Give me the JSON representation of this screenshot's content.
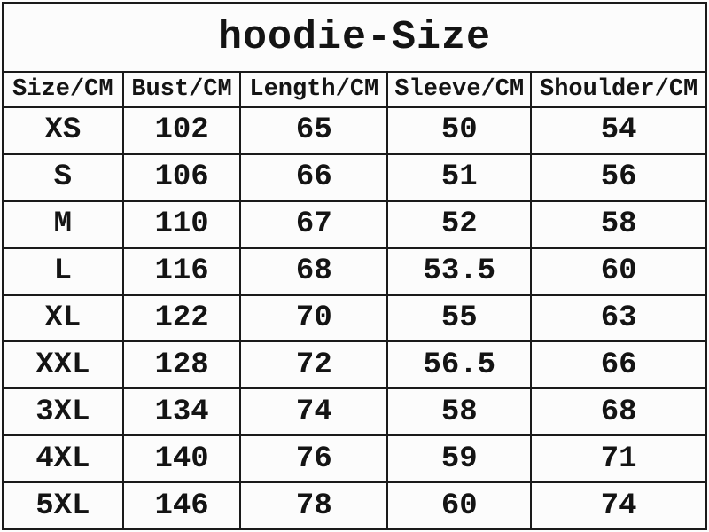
{
  "title": "hoodie-Size",
  "table": {
    "headers": [
      "Size/CM",
      "Bust/CM",
      "Length/CM",
      "Sleeve/CM",
      "Shoulder/CM"
    ],
    "rows": [
      [
        "XS",
        "102",
        "65",
        "50",
        "54"
      ],
      [
        "S",
        "106",
        "66",
        "51",
        "56"
      ],
      [
        "M",
        "110",
        "67",
        "52",
        "58"
      ],
      [
        "L",
        "116",
        "68",
        "53.5",
        "60"
      ],
      [
        "XL",
        "122",
        "70",
        "55",
        "63"
      ],
      [
        "XXL",
        "128",
        "72",
        "56.5",
        "66"
      ],
      [
        "3XL",
        "134",
        "74",
        "58",
        "68"
      ],
      [
        "4XL",
        "140",
        "76",
        "59",
        "71"
      ],
      [
        "5XL",
        "146",
        "78",
        "60",
        "74"
      ]
    ]
  },
  "colors": {
    "background": "#fcfcfc",
    "border": "#1a1a1a",
    "text": "#141414"
  },
  "chart_data": {
    "type": "table",
    "title": "hoodie-Size",
    "columns": [
      "Size/CM",
      "Bust/CM",
      "Length/CM",
      "Sleeve/CM",
      "Shoulder/CM"
    ],
    "rows": [
      {
        "size": "XS",
        "bust_cm": 102,
        "length_cm": 65,
        "sleeve_cm": 50,
        "shoulder_cm": 54
      },
      {
        "size": "S",
        "bust_cm": 106,
        "length_cm": 66,
        "sleeve_cm": 51,
        "shoulder_cm": 56
      },
      {
        "size": "M",
        "bust_cm": 110,
        "length_cm": 67,
        "sleeve_cm": 52,
        "shoulder_cm": 58
      },
      {
        "size": "L",
        "bust_cm": 116,
        "length_cm": 68,
        "sleeve_cm": 53.5,
        "shoulder_cm": 60
      },
      {
        "size": "XL",
        "bust_cm": 122,
        "length_cm": 70,
        "sleeve_cm": 55,
        "shoulder_cm": 63
      },
      {
        "size": "XXL",
        "bust_cm": 128,
        "length_cm": 72,
        "sleeve_cm": 56.5,
        "shoulder_cm": 66
      },
      {
        "size": "3XL",
        "bust_cm": 134,
        "length_cm": 74,
        "sleeve_cm": 58,
        "shoulder_cm": 68
      },
      {
        "size": "4XL",
        "bust_cm": 140,
        "length_cm": 76,
        "sleeve_cm": 59,
        "shoulder_cm": 71
      },
      {
        "size": "5XL",
        "bust_cm": 146,
        "length_cm": 78,
        "sleeve_cm": 60,
        "shoulder_cm": 74
      }
    ],
    "layout": "title row spanning all columns; header row; 9 data rows; black grid lines on off-white"
  }
}
